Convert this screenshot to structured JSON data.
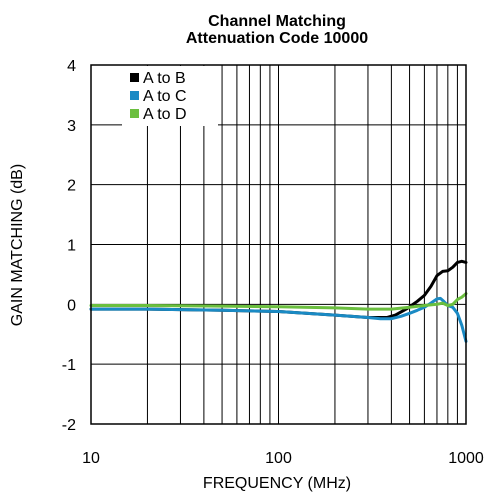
{
  "chart_data": {
    "type": "line",
    "title": "Channel Matching",
    "subtitle": "Attenuation Code 10000",
    "xlabel": "FREQUENCY (MHz)",
    "ylabel": "GAIN MATCHING (dB)",
    "xscale": "log",
    "xlim": [
      10,
      1000
    ],
    "ylim": [
      -2,
      4
    ],
    "xticks": [
      10,
      100,
      1000
    ],
    "xtick_labels": [
      "10",
      "100",
      "1000"
    ],
    "yticks": [
      -2,
      -1,
      0,
      1,
      2,
      3,
      4
    ],
    "ytick_labels": [
      "-2",
      "-1",
      "0",
      "1",
      "2",
      "3",
      "4"
    ],
    "grid": true,
    "legend_position": "top-left",
    "series": [
      {
        "name": "A to B",
        "color": "#000000",
        "x": [
          10,
          20,
          50,
          100,
          200,
          300,
          380,
          420,
          480,
          550,
          600,
          650,
          700,
          750,
          800,
          850,
          900,
          950,
          1000
        ],
        "y": [
          -0.08,
          -0.08,
          -0.1,
          -0.12,
          -0.18,
          -0.22,
          -0.22,
          -0.18,
          -0.08,
          0.05,
          0.15,
          0.3,
          0.48,
          0.55,
          0.56,
          0.62,
          0.7,
          0.72,
          0.7
        ]
      },
      {
        "name": "A to C",
        "color": "#1a8ac4",
        "x": [
          10,
          20,
          50,
          100,
          200,
          300,
          350,
          400,
          450,
          500,
          550,
          600,
          650,
          700,
          730,
          760,
          800,
          850,
          900,
          950,
          1000
        ],
        "y": [
          -0.08,
          -0.08,
          -0.1,
          -0.12,
          -0.18,
          -0.22,
          -0.24,
          -0.24,
          -0.2,
          -0.15,
          -0.1,
          -0.05,
          0.02,
          0.09,
          0.1,
          0.05,
          -0.02,
          -0.05,
          -0.15,
          -0.35,
          -0.62
        ]
      },
      {
        "name": "A to D",
        "color": "#6bbf3f",
        "x": [
          10,
          20,
          50,
          100,
          200,
          300,
          400,
          500,
          600,
          700,
          750,
          800,
          850,
          900,
          950,
          1000
        ],
        "y": [
          -0.02,
          -0.02,
          -0.03,
          -0.04,
          -0.06,
          -0.08,
          -0.08,
          -0.05,
          -0.02,
          0.0,
          0.02,
          -0.02,
          0.0,
          0.08,
          0.12,
          0.18
        ]
      }
    ]
  }
}
